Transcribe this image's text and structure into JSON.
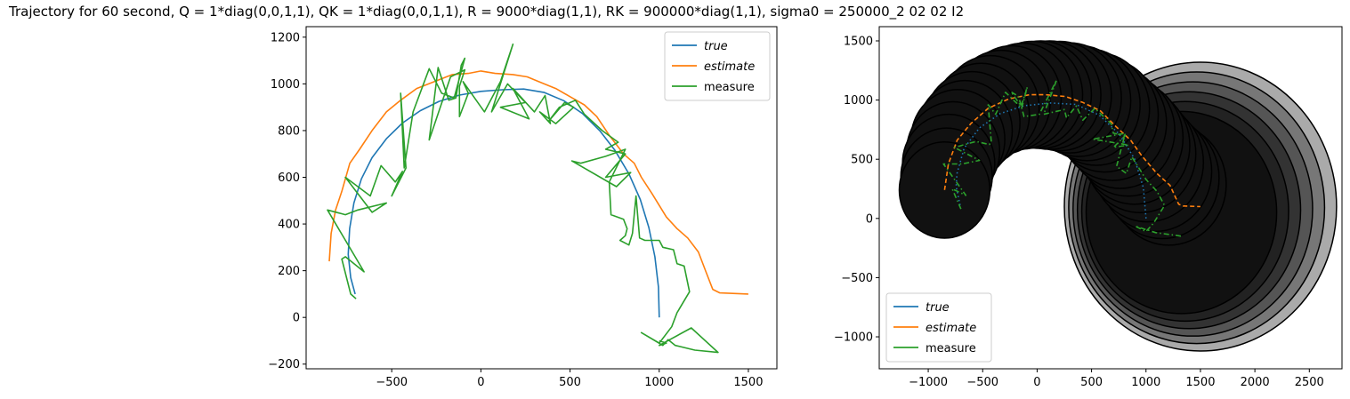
{
  "figure_title": "Trajectory for 60 second, Q = 1*diag(0,0,1,1), QK = 1*diag(0,0,1,1), R = 9000*diag(1,1), RK = 900000*diag(1,1), sigma0 = 250000_2 02 02 I2",
  "colors": {
    "true": "#1f77b4",
    "estimate": "#ff7f0e",
    "measure": "#2ca02c",
    "ellipse": "#000000"
  },
  "chart_data": [
    {
      "type": "line",
      "title": "",
      "xlabel": "",
      "ylabel": "",
      "xlim": [
        -980,
        1660
      ],
      "ylim": [
        -220,
        1245
      ],
      "xticks": [
        -500,
        0,
        500,
        1000,
        1500
      ],
      "yticks": [
        -200,
        0,
        200,
        400,
        600,
        800,
        1000,
        1200
      ],
      "grid": false,
      "legend": "top-right",
      "series": [
        {
          "name": "true",
          "style": "italic",
          "color": "#1f77b4",
          "points": [
            [
              1000,
              0
            ],
            [
              996,
              130
            ],
            [
              976,
              260
            ],
            [
              942,
              385
            ],
            [
              894,
              505
            ],
            [
              830,
              615
            ],
            [
              752,
              715
            ],
            [
              666,
              800
            ],
            [
              570,
              873
            ],
            [
              465,
              928
            ],
            [
              356,
              963
            ],
            [
              240,
              978
            ],
            [
              120,
              975
            ],
            [
              0,
              968
            ],
            [
              -120,
              952
            ],
            [
              -235,
              925
            ],
            [
              -340,
              885
            ],
            [
              -440,
              832
            ],
            [
              -530,
              765
            ],
            [
              -610,
              684
            ],
            [
              -670,
              593
            ],
            [
              -712,
              490
            ],
            [
              -736,
              380
            ],
            [
              -744,
              270
            ],
            [
              -730,
              170
            ],
            [
              -705,
              100
            ]
          ]
        },
        {
          "name": "estimate",
          "style": "italic",
          "color": "#ff7f0e",
          "points": [
            [
              -850,
              240
            ],
            [
              -840,
              360
            ],
            [
              -815,
              460
            ],
            [
              -780,
              540
            ],
            [
              -735,
              660
            ],
            [
              -680,
              720
            ],
            [
              -610,
              800
            ],
            [
              -530,
              880
            ],
            [
              -450,
              930
            ],
            [
              -360,
              980
            ],
            [
              -260,
              1010
            ],
            [
              -160,
              1040
            ],
            [
              -70,
              1045
            ],
            [
              0,
              1055
            ],
            [
              80,
              1045
            ],
            [
              180,
              1040
            ],
            [
              260,
              1030
            ],
            [
              340,
              1005
            ],
            [
              420,
              980
            ],
            [
              500,
              945
            ],
            [
              580,
              910
            ],
            [
              650,
              860
            ],
            [
              720,
              780
            ],
            [
              760,
              740
            ],
            [
              800,
              700
            ],
            [
              860,
              660
            ],
            [
              900,
              600
            ],
            [
              960,
              530
            ],
            [
              1040,
              430
            ],
            [
              1100,
              380
            ],
            [
              1160,
              340
            ],
            [
              1220,
              280
            ],
            [
              1260,
              200
            ],
            [
              1300,
              120
            ],
            [
              1340,
              105
            ],
            [
              1500,
              100
            ]
          ]
        },
        {
          "name": "measure",
          "style": "normal",
          "color": "#2ca02c",
          "points": [
            [
              -700,
              80
            ],
            [
              -730,
              100
            ],
            [
              -780,
              250
            ],
            [
              -760,
              260
            ],
            [
              -655,
              195
            ],
            [
              -860,
              460
            ],
            [
              -760,
              440
            ],
            [
              -690,
              460
            ],
            [
              -530,
              490
            ],
            [
              -610,
              450
            ],
            [
              -760,
              600
            ],
            [
              -620,
              520
            ],
            [
              -560,
              650
            ],
            [
              -480,
              580
            ],
            [
              -440,
              625
            ],
            [
              -500,
              520
            ],
            [
              -420,
              640
            ],
            [
              -450,
              960
            ],
            [
              -430,
              640
            ],
            [
              -380,
              880
            ],
            [
              -290,
              1065
            ],
            [
              -220,
              960
            ],
            [
              -150,
              940
            ],
            [
              -90,
              1110
            ],
            [
              -110,
              1080
            ],
            [
              -140,
              940
            ],
            [
              -180,
              930
            ],
            [
              -240,
              1070
            ],
            [
              -290,
              760
            ],
            [
              -170,
              1030
            ],
            [
              -90,
              1060
            ],
            [
              -120,
              990
            ],
            [
              -120,
              860
            ],
            [
              -70,
              960
            ],
            [
              -100,
              1010
            ],
            [
              20,
              880
            ],
            [
              110,
              1010
            ],
            [
              180,
              1170
            ],
            [
              60,
              880
            ],
            [
              150,
              1000
            ],
            [
              200,
              960
            ],
            [
              250,
              920
            ],
            [
              110,
              900
            ],
            [
              270,
              850
            ],
            [
              180,
              980
            ],
            [
              300,
              880
            ],
            [
              360,
              950
            ],
            [
              390,
              830
            ],
            [
              330,
              880
            ],
            [
              420,
              830
            ],
            [
              520,
              900
            ],
            [
              470,
              920
            ],
            [
              380,
              840
            ],
            [
              440,
              900
            ],
            [
              530,
              930
            ],
            [
              580,
              870
            ],
            [
              680,
              800
            ],
            [
              770,
              750
            ],
            [
              700,
              720
            ],
            [
              810,
              700
            ],
            [
              700,
              600
            ],
            [
              840,
              620
            ],
            [
              760,
              560
            ],
            [
              510,
              670
            ],
            [
              560,
              660
            ],
            [
              700,
              690
            ],
            [
              810,
              720
            ],
            [
              720,
              580
            ],
            [
              730,
              440
            ],
            [
              800,
              420
            ],
            [
              820,
              380
            ],
            [
              810,
              350
            ],
            [
              780,
              330
            ],
            [
              830,
              310
            ],
            [
              850,
              360
            ],
            [
              870,
              520
            ],
            [
              890,
              340
            ],
            [
              920,
              330
            ],
            [
              1000,
              330
            ],
            [
              1020,
              300
            ],
            [
              1080,
              290
            ],
            [
              1100,
              230
            ],
            [
              1140,
              220
            ],
            [
              1170,
              110
            ],
            [
              1100,
              20
            ],
            [
              1070,
              -40
            ],
            [
              1000,
              -110
            ],
            [
              900,
              -65
            ],
            [
              1020,
              -120
            ],
            [
              1050,
              -95
            ],
            [
              1090,
              -120
            ],
            [
              1200,
              -140
            ],
            [
              1330,
              -150
            ],
            [
              1180,
              -45
            ],
            [
              1000,
              -120
            ],
            [
              1040,
              -110
            ],
            [
              1000,
              -100
            ]
          ]
        }
      ]
    },
    {
      "type": "line",
      "title": "",
      "xlabel": "",
      "ylabel": "",
      "xlim": [
        -1450,
        2800
      ],
      "ylim": [
        -1270,
        1620
      ],
      "xticks": [
        -1000,
        -500,
        0,
        500,
        1000,
        1500,
        2000,
        2500
      ],
      "yticks": [
        -1000,
        -500,
        0,
        500,
        1000,
        1500
      ],
      "grid": false,
      "legend": "bottom-left",
      "ellipses": {
        "description": "confidence ellipses around the estimated trajectory",
        "count": 36,
        "largest": {
          "cx": 1500,
          "cy": 100,
          "rx": 1250,
          "ry": 1220
        },
        "fills": [
          "#aaaaaa",
          "#777777",
          "#555555",
          "#333333",
          "#222222",
          "#111111"
        ]
      },
      "series": [
        {
          "name": "true",
          "style": "italic",
          "color": "#1f77b4",
          "dash": "dotted",
          "points": [
            [
              1000,
              0
            ],
            [
              976,
              260
            ],
            [
              894,
              505
            ],
            [
              752,
              715
            ],
            [
              570,
              873
            ],
            [
              356,
              963
            ],
            [
              120,
              975
            ],
            [
              -120,
              952
            ],
            [
              -340,
              885
            ],
            [
              -530,
              765
            ],
            [
              -670,
              593
            ],
            [
              -736,
              380
            ],
            [
              -744,
              270
            ],
            [
              -705,
              100
            ]
          ]
        },
        {
          "name": "estimate",
          "style": "italic",
          "color": "#ff7f0e",
          "dash": "dashed",
          "points": [
            [
              -850,
              240
            ],
            [
              -815,
              460
            ],
            [
              -735,
              660
            ],
            [
              -610,
              800
            ],
            [
              -450,
              930
            ],
            [
              -260,
              1010
            ],
            [
              -70,
              1045
            ],
            [
              80,
              1045
            ],
            [
              260,
              1030
            ],
            [
              420,
              980
            ],
            [
              580,
              910
            ],
            [
              720,
              780
            ],
            [
              860,
              660
            ],
            [
              960,
              530
            ],
            [
              1100,
              380
            ],
            [
              1220,
              280
            ],
            [
              1300,
              120
            ],
            [
              1340,
              105
            ],
            [
              1500,
              100
            ]
          ]
        },
        {
          "name": "measure",
          "style": "normal",
          "color": "#2ca02c",
          "dash": "dashdot",
          "points": [
            [
              -700,
              80
            ],
            [
              -780,
              250
            ],
            [
              -655,
              195
            ],
            [
              -860,
              460
            ],
            [
              -690,
              460
            ],
            [
              -530,
              490
            ],
            [
              -760,
              600
            ],
            [
              -560,
              650
            ],
            [
              -440,
              625
            ],
            [
              -420,
              640
            ],
            [
              -450,
              960
            ],
            [
              -380,
              880
            ],
            [
              -290,
              1065
            ],
            [
              -150,
              940
            ],
            [
              -90,
              1110
            ],
            [
              -140,
              940
            ],
            [
              -240,
              1070
            ],
            [
              -170,
              1030
            ],
            [
              -120,
              860
            ],
            [
              20,
              880
            ],
            [
              180,
              1170
            ],
            [
              60,
              880
            ],
            [
              250,
              920
            ],
            [
              270,
              850
            ],
            [
              360,
              950
            ],
            [
              420,
              830
            ],
            [
              530,
              930
            ],
            [
              680,
              800
            ],
            [
              700,
              720
            ],
            [
              810,
              700
            ],
            [
              700,
              600
            ],
            [
              840,
              620
            ],
            [
              510,
              670
            ],
            [
              810,
              720
            ],
            [
              730,
              440
            ],
            [
              820,
              380
            ],
            [
              870,
              520
            ],
            [
              1000,
              330
            ],
            [
              1100,
              230
            ],
            [
              1170,
              110
            ],
            [
              1070,
              -40
            ],
            [
              1000,
              -110
            ],
            [
              900,
              -65
            ],
            [
              1090,
              -120
            ],
            [
              1330,
              -150
            ]
          ]
        }
      ]
    }
  ]
}
